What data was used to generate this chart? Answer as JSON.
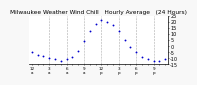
{
  "title": "Milwaukee Weather Wind Chill   Hourly Average   (24 Hours)",
  "title_fontsize": 4.2,
  "background_color": "#f8f8f8",
  "plot_bg_color": "#ffffff",
  "grid_color": "#888888",
  "dot_color": "#0000cc",
  "dot_size": 1.8,
  "x_hours": [
    0,
    1,
    2,
    3,
    4,
    5,
    6,
    7,
    8,
    9,
    10,
    11,
    12,
    13,
    14,
    15,
    16,
    17,
    18,
    19,
    20,
    21,
    22,
    23
  ],
  "y_values": [
    -5,
    -7,
    -8,
    -10,
    -11,
    -12,
    -11,
    -9,
    -4,
    4,
    12,
    18,
    21,
    20,
    17,
    12,
    5,
    -1,
    -5,
    -9,
    -11,
    -12,
    -12,
    -11
  ],
  "ylim": [
    -15,
    25
  ],
  "yticks": [
    -15,
    -10,
    -5,
    0,
    5,
    10,
    15,
    20,
    25
  ],
  "ytick_labels": [
    "-15",
    "-10",
    "-5",
    "0",
    "5",
    "10",
    "15",
    "20",
    "25"
  ],
  "ylabel_fontsize": 3.5,
  "xlabel_fontsize": 3.0,
  "grid_x_positions": [
    3,
    6,
    9,
    12,
    15,
    18,
    21
  ],
  "xtick_positions": [
    0,
    1,
    2,
    3,
    4,
    5,
    6,
    7,
    8,
    9,
    10,
    11,
    12,
    13,
    14,
    15,
    16,
    17,
    18,
    19,
    20,
    21,
    22,
    23
  ],
  "xtick_major": [
    0,
    3,
    6,
    9,
    12,
    15,
    18,
    21
  ]
}
